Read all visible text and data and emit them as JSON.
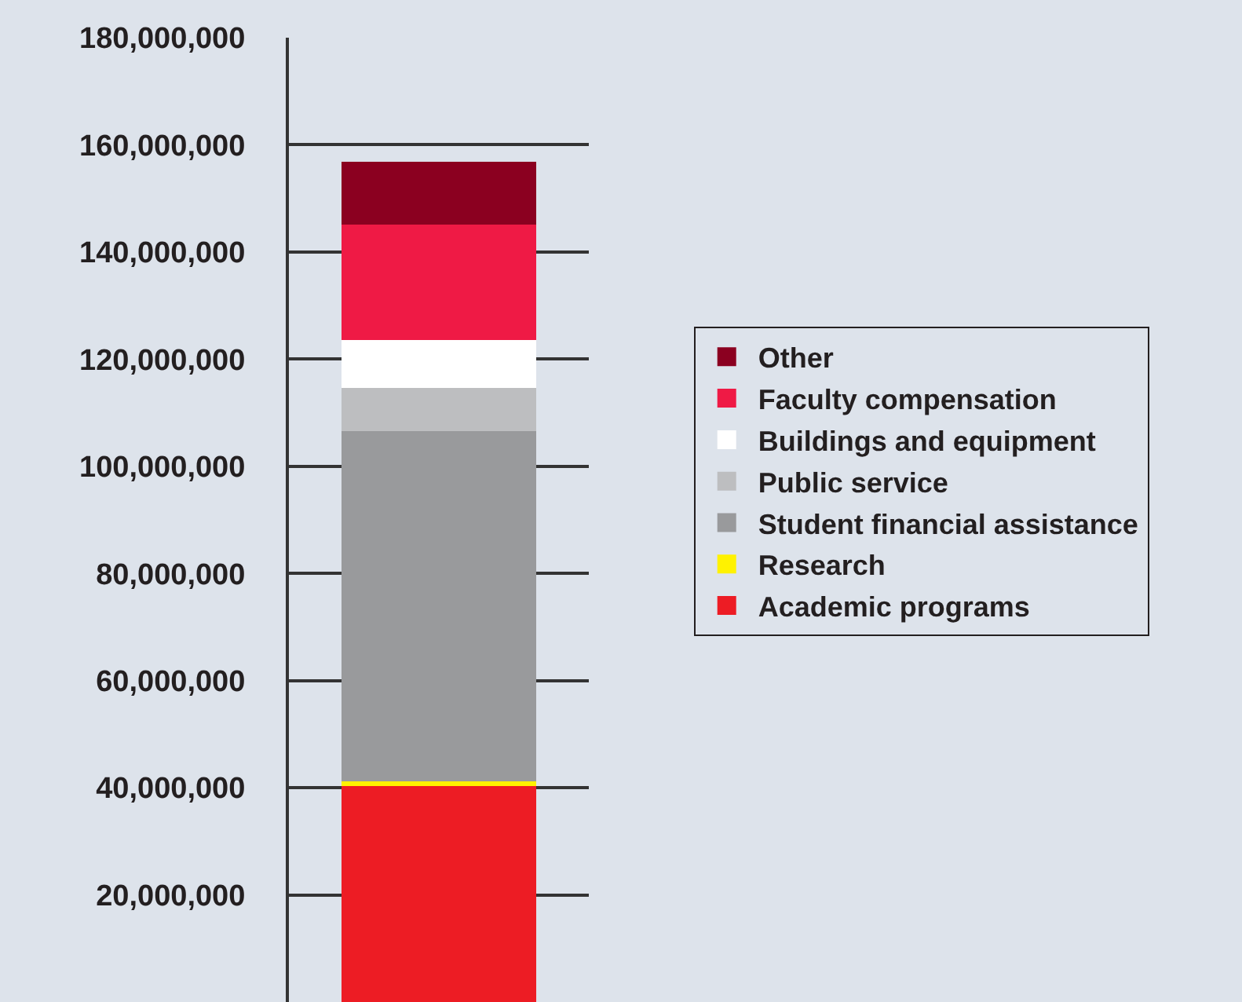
{
  "chart_data": {
    "type": "bar",
    "stacked": true,
    "categories": [
      null
    ],
    "series": [
      {
        "name": "Academic programs",
        "color": "#ed1c24",
        "values": [
          40300000
        ]
      },
      {
        "name": "Research",
        "color": "#fff200",
        "values": [
          900000
        ]
      },
      {
        "name": "Student financial assistance",
        "color": "#999a9c",
        "values": [
          65400000
        ]
      },
      {
        "name": "Public service",
        "color": "#bdbec0",
        "values": [
          8100000
        ]
      },
      {
        "name": "Buildings and equipment",
        "color": "#ffffff",
        "values": [
          8800000
        ]
      },
      {
        "name": "Faculty compensation",
        "color": "#ef1a45",
        "values": [
          21600000
        ]
      },
      {
        "name": "Other",
        "color": "#8b0020",
        "values": [
          11700000
        ]
      }
    ],
    "ylim": [
      0,
      180000000
    ],
    "yticks": [
      {
        "value": 20000000,
        "label": "20,000,000"
      },
      {
        "value": 40000000,
        "label": "40,000,000"
      },
      {
        "value": 60000000,
        "label": "60,000,000"
      },
      {
        "value": 80000000,
        "label": "80,000,000"
      },
      {
        "value": 100000000,
        "label": "100,000,000"
      },
      {
        "value": 120000000,
        "label": "120,000,000"
      },
      {
        "value": 140000000,
        "label": "140,000,000"
      },
      {
        "value": 160000000,
        "label": "160,000,000"
      },
      {
        "value": 180000000,
        "label": "180,000,000"
      }
    ],
    "grid": "y",
    "legend": "right",
    "tick_labels": "y"
  }
}
